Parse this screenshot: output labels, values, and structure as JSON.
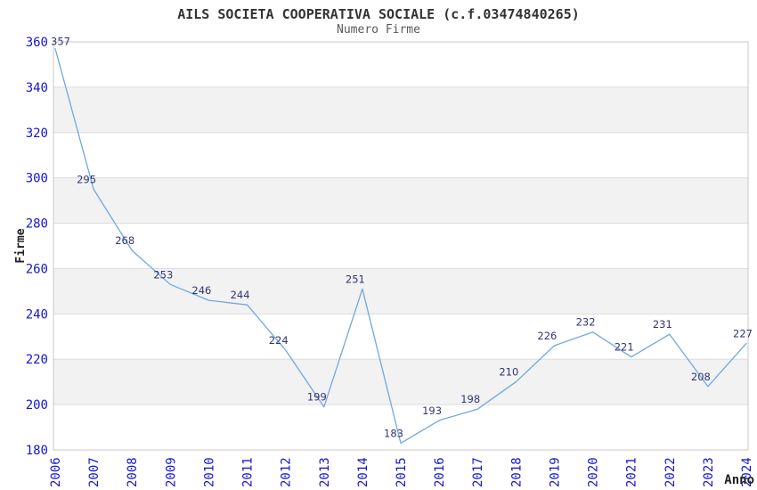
{
  "chart_data": {
    "type": "line",
    "title": "AILS SOCIETA COOPERATIVA SOCIALE (c.f.03474840265)",
    "subtitle": "Numero Firme",
    "xlabel": "Anno",
    "ylabel": "Firme",
    "x": [
      "2006",
      "2007",
      "2008",
      "2009",
      "2010",
      "2011",
      "2012",
      "2013",
      "2014",
      "2015",
      "2016",
      "2017",
      "2018",
      "2019",
      "2020",
      "2021",
      "2022",
      "2023",
      "2024"
    ],
    "series": [
      {
        "name": "Numero Firme",
        "values": [
          357,
          295,
          268,
          253,
          246,
          244,
          224,
          199,
          251,
          183,
          193,
          198,
          210,
          226,
          232,
          221,
          231,
          208,
          227
        ]
      }
    ],
    "ylim": [
      180,
      360
    ],
    "ytick_step": 20,
    "yticks": [
      180,
      200,
      220,
      240,
      260,
      280,
      300,
      320,
      340,
      360
    ],
    "grid": true,
    "legend_position": "none",
    "data_labels_shown": true,
    "banded_background": true,
    "colors": {
      "line": "#6fa8e0",
      "tick_label": "#1515cd",
      "data_label": "#333377",
      "grid_line": "#dcdcdc",
      "band_fill": "#f2f2f2",
      "plot_border": "#c8c8c8",
      "title": "#333333",
      "subtitle": "#595959",
      "axis_label": "#222222",
      "background": "#ffffff"
    }
  }
}
